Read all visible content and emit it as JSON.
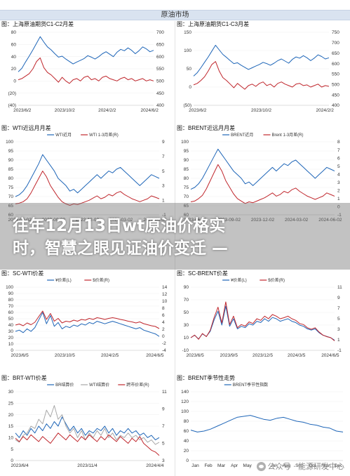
{
  "header": {
    "title": "原油市场"
  },
  "overlay": {
    "line1": "往年12月13日wt原油价格实",
    "line2": "时，智慧之眼见证油价变迁 —"
  },
  "watermark": {
    "text": "公众号 · 能源研发中心",
    "icon": "wechat-icon"
  },
  "chart_data": [
    {
      "id": "sh-c1c2",
      "type": "line",
      "title": "图：上海原油期货C1-C2月差",
      "x_ticks": [
        "2023/6/2",
        "2023/10/2",
        "2024/2/2",
        "2024/6/2"
      ],
      "y_left_ticks": [
        "80",
        "60",
        "40",
        "20",
        "0",
        "(20)",
        "(40)"
      ],
      "y_right_ticks": [
        "700",
        "650",
        "600",
        "550",
        "500",
        "450",
        "400"
      ],
      "series": [
        {
          "color": "#1f66b8",
          "axis": "right",
          "values": [
            538,
            552,
            578,
            602,
            628,
            655,
            682,
            660,
            640,
            628,
            612,
            598,
            602,
            590,
            580,
            570,
            578,
            585,
            592,
            604,
            598,
            590,
            600,
            612,
            620,
            610,
            600,
            618,
            630,
            624,
            636,
            626,
            612,
            624,
            640,
            632,
            620,
            626
          ]
        },
        {
          "color": "#c0272d",
          "axis": "left",
          "values": [
            2,
            4,
            8,
            12,
            20,
            32,
            38,
            22,
            14,
            10,
            4,
            -2,
            6,
            0,
            -4,
            2,
            4,
            0,
            6,
            8,
            2,
            4,
            0,
            6,
            8,
            4,
            2,
            0,
            4,
            6,
            2,
            4,
            0,
            2,
            4,
            0,
            2,
            0
          ]
        }
      ]
    },
    {
      "id": "sh-c1c3",
      "type": "line",
      "title": "图：上海原油期货C1-C3月差",
      "x_ticks": [
        "2023/6/2",
        "2023/10/2",
        "2024/2/2"
      ],
      "y_left_ticks": [
        "150",
        "100",
        "50",
        "0",
        "(50)"
      ],
      "y_right_ticks": [
        "750",
        "700",
        "650",
        "600",
        "550",
        "500",
        "450",
        "400"
      ],
      "series": [
        {
          "color": "#1f66b8",
          "axis": "right",
          "values": [
            540,
            556,
            580,
            606,
            632,
            660,
            688,
            666,
            644,
            630,
            614,
            600,
            604,
            592,
            582,
            572,
            580,
            588,
            596,
            606,
            600,
            592,
            602,
            614,
            622,
            612,
            602,
            620,
            632,
            626,
            638,
            628,
            614,
            626,
            642,
            634,
            622,
            628
          ]
        },
        {
          "color": "#c0272d",
          "axis": "left",
          "values": [
            6,
            10,
            18,
            28,
            44,
            62,
            70,
            44,
            26,
            18,
            8,
            -2,
            10,
            2,
            -6,
            4,
            8,
            2,
            10,
            14,
            4,
            8,
            0,
            10,
            14,
            8,
            4,
            0,
            8,
            10,
            4,
            6,
            0,
            4,
            8,
            0,
            4,
            2
          ]
        }
      ]
    },
    {
      "id": "wti-spread",
      "type": "line",
      "title": "图：WTI近远月月差",
      "x_ticks": [
        "2023-06-02",
        "2023-09-02",
        "2023-12-02",
        "2024-03-02",
        "2024-06-02"
      ],
      "y_left_ticks": [
        "100",
        "95",
        "90",
        "85",
        "80",
        "75",
        "70",
        "65",
        "60"
      ],
      "y_right_ticks": [
        "9",
        "7",
        "5",
        "3",
        "1",
        "-1"
      ],
      "legend": [
        "WTI近月",
        "WTI 1-3月差(R)"
      ],
      "series": [
        {
          "name": "WTI近月",
          "color": "#1f66b8",
          "axis": "left",
          "values": [
            70,
            71,
            73,
            76,
            80,
            84,
            88,
            93,
            90,
            87,
            84,
            80,
            78,
            76,
            73,
            74,
            72,
            74,
            76,
            78,
            80,
            82,
            80,
            82,
            84,
            83,
            85,
            86,
            84,
            82,
            80,
            78,
            76,
            78,
            80,
            82,
            81,
            80
          ]
        },
        {
          "name": "WTI 1-3月差(R)",
          "color": "#c0272d",
          "axis": "right",
          "values": [
            0.5,
            0.6,
            0.8,
            1.2,
            2.0,
            3.0,
            4.0,
            5.0,
            4.2,
            3.0,
            2.2,
            1.4,
            0.8,
            0.5,
            0.3,
            0.5,
            0.4,
            0.6,
            0.8,
            1.0,
            1.3,
            1.6,
            1.2,
            1.4,
            1.8,
            1.6,
            2.0,
            2.2,
            1.8,
            1.5,
            1.2,
            1.0,
            0.8,
            1.0,
            1.2,
            1.6,
            1.4,
            1.2
          ]
        }
      ]
    },
    {
      "id": "brent-spread",
      "type": "line",
      "title": "图：BRENT近远月月差",
      "x_ticks": [
        "2023-06-02",
        "2023-09-02",
        "2023-12-02",
        "2024-03-02",
        "2024-06-02"
      ],
      "y_left_ticks": [
        "100",
        "95",
        "90",
        "85",
        "80",
        "75",
        "70",
        "65",
        "60"
      ],
      "y_right_ticks": [
        "8",
        "7",
        "6",
        "5",
        "4",
        "3",
        "2",
        "1",
        "0",
        "-1"
      ],
      "legend": [
        "BRENT近月",
        "Brent 1-3月差(R)"
      ],
      "series": [
        {
          "name": "BRENT近月",
          "color": "#1f66b8",
          "axis": "left",
          "values": [
            74,
            75,
            77,
            80,
            84,
            88,
            92,
            96,
            93,
            90,
            87,
            84,
            82,
            80,
            77,
            78,
            76,
            78,
            80,
            82,
            84,
            86,
            84,
            86,
            88,
            87,
            89,
            90,
            88,
            86,
            84,
            82,
            80,
            82,
            84,
            86,
            85,
            84
          ]
        },
        {
          "name": "Brent 1-3月差(R)",
          "color": "#c0272d",
          "axis": "right",
          "values": [
            0.6,
            0.7,
            1.0,
            1.4,
            2.2,
            3.2,
            4.2,
            5.2,
            4.4,
            3.2,
            2.4,
            1.6,
            1.0,
            0.7,
            0.4,
            0.6,
            0.5,
            0.7,
            0.9,
            1.1,
            1.4,
            1.7,
            1.3,
            1.5,
            1.9,
            1.7,
            2.1,
            2.3,
            1.9,
            1.6,
            1.3,
            1.1,
            0.9,
            1.1,
            1.3,
            1.7,
            1.5,
            1.3
          ]
        }
      ]
    },
    {
      "id": "sc-wti",
      "type": "line",
      "title": "图：SC-WTI价差",
      "x_ticks": [
        "2023/6/5",
        "2023/10/5",
        "2024/2/5",
        "2024/6/5"
      ],
      "y_left_ticks": [
        "100",
        "90",
        "80",
        "70",
        "60",
        "50",
        "40",
        "30",
        "20",
        "10",
        "0"
      ],
      "y_right_ticks": [
        "14",
        "12",
        "10",
        "8",
        "6",
        "4",
        "2",
        "0",
        "-2",
        "-4"
      ],
      "legend": [
        "¥价差(L)",
        "$价差(R)"
      ],
      "series": [
        {
          "name": "¥价差(L)",
          "color": "#1f66b8",
          "axis": "left",
          "values": [
            30,
            32,
            28,
            34,
            30,
            36,
            48,
            60,
            42,
            55,
            38,
            44,
            34,
            38,
            36,
            40,
            38,
            42,
            40,
            44,
            42,
            46,
            44,
            42,
            44,
            46,
            44,
            42,
            40,
            38,
            36,
            34,
            36,
            32,
            30,
            28,
            26,
            22
          ]
        },
        {
          "name": "$价差(R)",
          "color": "#c0272d",
          "axis": "right",
          "values": [
            3.2,
            3.5,
            3.0,
            3.8,
            3.3,
            4.0,
            5.6,
            7.2,
            4.8,
            6.5,
            4.3,
            5.1,
            3.8,
            4.3,
            4.1,
            4.6,
            4.3,
            4.8,
            4.6,
            5.1,
            4.8,
            5.3,
            5.1,
            4.8,
            5.1,
            5.3,
            5.1,
            4.8,
            4.6,
            4.3,
            4.1,
            3.8,
            4.1,
            3.6,
            3.3,
            3.0,
            2.8,
            2.2
          ]
        }
      ]
    },
    {
      "id": "sc-brent",
      "type": "line",
      "title": "图：SC-BRENT价差",
      "x_ticks": [
        "2023/6/5",
        "2023/9/5",
        "2023/12/5",
        "2024/3/5",
        "2024/6/5"
      ],
      "y_left_ticks": [
        "90",
        "70",
        "50",
        "30",
        "10",
        "-10"
      ],
      "y_right_ticks": [
        "11",
        "9",
        "7",
        "5",
        "3",
        "1",
        "-1"
      ],
      "legend": [
        "¥价差(L)",
        "$价差(R)"
      ],
      "series": [
        {
          "name": "¥价差(L)",
          "color": "#1f66b8",
          "axis": "left",
          "values": [
            10,
            14,
            8,
            16,
            12,
            20,
            38,
            52,
            30,
            60,
            28,
            40,
            24,
            28,
            26,
            32,
            30,
            36,
            34,
            40,
            36,
            42,
            40,
            36,
            38,
            40,
            36,
            34,
            30,
            28,
            24,
            22,
            24,
            18,
            14,
            12,
            10,
            6
          ]
        },
        {
          "name": "$价差(R)",
          "color": "#c0272d",
          "axis": "right",
          "values": [
            1.4,
            1.9,
            1.1,
            2.2,
            1.6,
            2.8,
            5.2,
            7.2,
            4.2,
            8.2,
            3.9,
            5.5,
            3.3,
            3.9,
            3.6,
            4.4,
            4.1,
            5.0,
            4.7,
            5.5,
            5.0,
            5.8,
            5.5,
            5.0,
            5.2,
            5.5,
            5.0,
            4.7,
            4.1,
            3.9,
            3.3,
            3.0,
            3.3,
            2.5,
            1.9,
            1.6,
            1.4,
            0.8
          ]
        }
      ]
    },
    {
      "id": "brt-wti",
      "type": "line",
      "title": "图：BRT-WTI价差",
      "x_ticks": [
        "2023/6/4",
        "2023/11/4",
        "2024/4/4"
      ],
      "y_left_ticks": [
        "30",
        "25",
        "20",
        "15",
        "10",
        "5",
        "0"
      ],
      "y_right_ticks": [
        "11",
        "9",
        "7",
        "5",
        "3"
      ],
      "legend": [
        "BR结算价",
        "WTI结算价",
        "跨市价差(R)"
      ],
      "series": [
        {
          "name": "BR结算价",
          "color": "#1f66b8",
          "axis": "left",
          "values": [
            12,
            10,
            13,
            11,
            14,
            12,
            15,
            13,
            16,
            14,
            17,
            15,
            19,
            16,
            13,
            15,
            12,
            14,
            11,
            13,
            12,
            14,
            13,
            15,
            12,
            14,
            11,
            13,
            12,
            14,
            12,
            13,
            11,
            12,
            10,
            11,
            9,
            10
          ]
        },
        {
          "name": "WTI结算价",
          "color": "#a8a8a8",
          "axis": "left",
          "values": [
            9,
            8,
            11,
            12,
            15,
            14,
            18,
            16,
            22,
            19,
            24,
            18,
            20,
            15,
            12,
            14,
            10,
            13,
            9,
            12,
            10,
            13,
            11,
            14,
            10,
            12,
            9,
            11,
            10,
            12,
            10,
            11,
            9,
            10,
            8,
            9,
            7,
            8
          ]
        },
        {
          "name": "跨市价差(R)",
          "color": "#c0272d",
          "axis": "right",
          "values": [
            5.6,
            5.2,
            5.8,
            5.4,
            6.0,
            5.6,
            5.2,
            5.8,
            5.4,
            5.0,
            5.6,
            6.2,
            5.8,
            5.4,
            6.0,
            5.6,
            5.2,
            5.8,
            5.4,
            6.0,
            5.6,
            5.2,
            5.8,
            5.4,
            6.0,
            5.6,
            5.2,
            5.8,
            5.4,
            5.0,
            5.6,
            5.2,
            5.8,
            5.0,
            4.6,
            4.2,
            4.0,
            3.6
          ]
        }
      ]
    },
    {
      "id": "brent-seasonal",
      "type": "line",
      "title": "图：BRENT季节性走势",
      "x_ticks": [
        "Jan",
        "Feb",
        "Mar",
        "Apr",
        "May",
        "Jun",
        "Jul",
        "Aug",
        "Sep",
        "Oct",
        "Nov",
        "Dec"
      ],
      "y_left_ticks": [
        "140",
        "120",
        "100",
        "80",
        "60",
        "40",
        "20",
        "0"
      ],
      "legend": [
        "BRENT季节性指数"
      ],
      "series": [
        {
          "name": "BRENT季节性指数",
          "color": "#1f66b8",
          "axis": "left",
          "values": [
            62,
            58,
            60,
            64,
            70,
            76,
            82,
            88,
            90,
            92,
            88,
            84,
            82,
            86,
            88,
            84,
            80,
            78,
            74,
            72,
            68,
            66,
            60,
            58
          ]
        }
      ]
    }
  ]
}
